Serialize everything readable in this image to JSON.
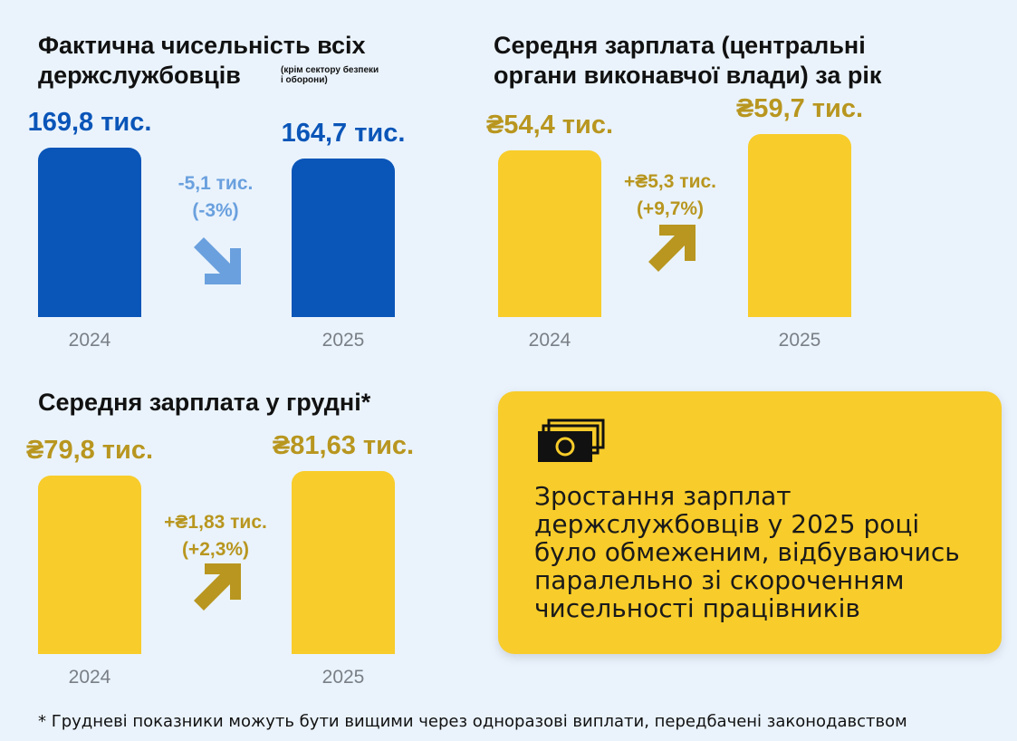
{
  "colors": {
    "blue": "#0a55b8",
    "yellow": "#f8cc2a",
    "blue_arrow": "#6aa0de",
    "gold_text": "#b8961f",
    "gold_arrow": "#b8961f",
    "year_gray": "#7a7f86",
    "background": "#eaf3fc"
  },
  "chart_data": [
    {
      "type": "bar",
      "title": [
        "Фактична чисельність всіх",
        "держслужбовців"
      ],
      "subtitle": [
        "(крім сектору безпеки",
        "і оборони)"
      ],
      "categories": [
        "2024",
        "2025"
      ],
      "values": [
        169.8,
        164.7
      ],
      "value_labels": [
        "169,8 тис.",
        "164,7 тис."
      ],
      "change": [
        "-5,1 тис.",
        "(-3%)"
      ],
      "direction": "down",
      "color": "#0a55b8"
    },
    {
      "type": "bar",
      "title": [
        "Середня зарплата (центральні",
        "органи виконавчої влади) за рік"
      ],
      "categories": [
        "2024",
        "2025"
      ],
      "values": [
        54.4,
        59.7
      ],
      "value_labels": [
        "₴54,4 тис.",
        "₴59,7 тис."
      ],
      "change": [
        "+₴5,3 тис.",
        "(+9,7%)"
      ],
      "direction": "up",
      "color": "#f8cc2a"
    },
    {
      "type": "bar",
      "title": [
        "Середня зарплата у грудні*"
      ],
      "categories": [
        "2024",
        "2025"
      ],
      "values": [
        79.8,
        81.63
      ],
      "value_labels": [
        "₴79,8 тис.",
        "₴81,63 тис."
      ],
      "change": [
        "+₴1,83 тис.",
        "(+2,3%)"
      ],
      "direction": "up",
      "color": "#f8cc2a"
    }
  ],
  "callout": {
    "icon": "money-icon",
    "lines": [
      "Зростання зарплат",
      "держслужбовців у 2025 році",
      "було обмеженим, відбуваючись",
      "паралельно зі скороченням",
      "чисельності працівників"
    ]
  },
  "footnote": "* Грудневі показники можуть бути вищими через одноразові виплати, передбачені законодавством"
}
